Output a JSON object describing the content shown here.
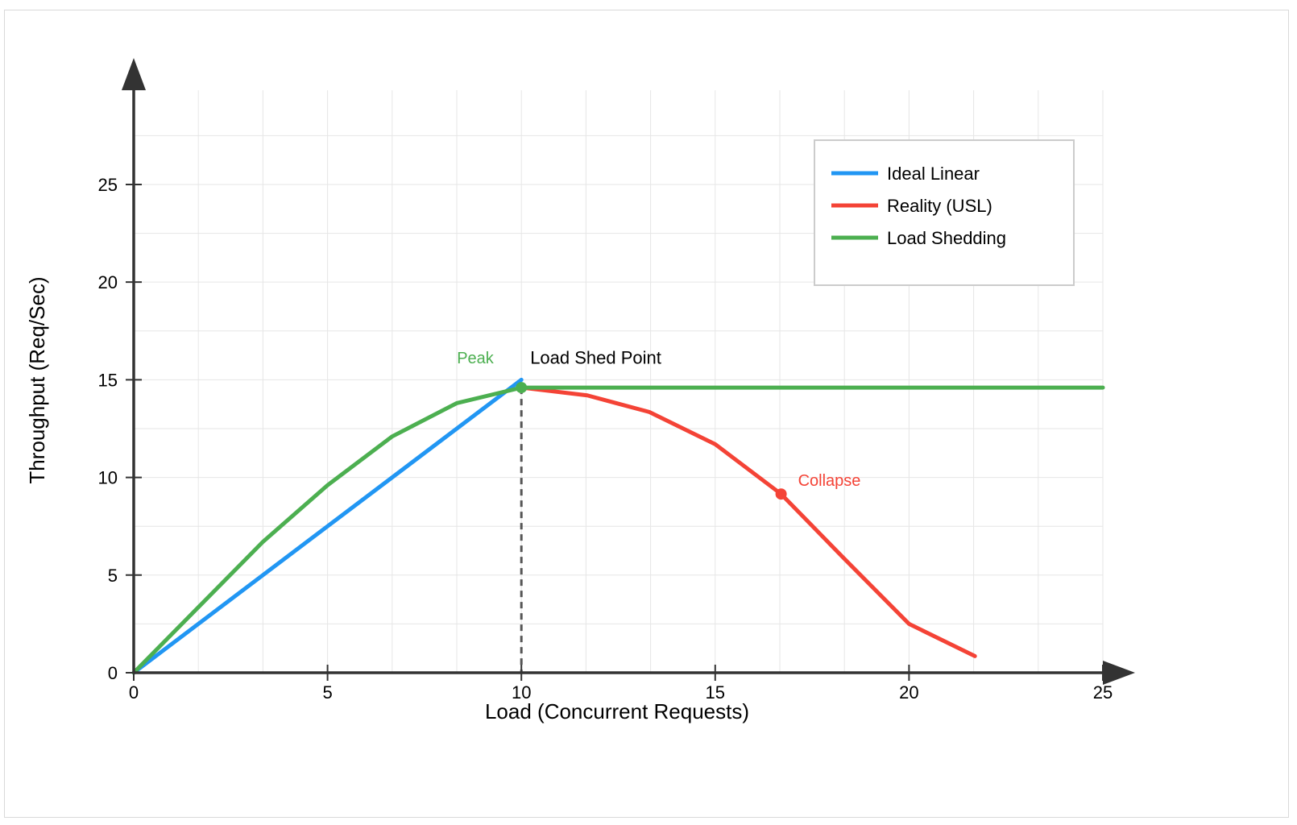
{
  "chart_data": {
    "type": "line",
    "xlabel": "Load (Concurrent Requests)",
    "ylabel": "Throughput (Req/Sec)",
    "xlim": [
      0,
      25
    ],
    "ylim": [
      0,
      29
    ],
    "x_ticks": [
      "0",
      "5",
      "10",
      "15",
      "20",
      "25"
    ],
    "y_ticks": [
      "0",
      "5",
      "10",
      "15",
      "20",
      "25"
    ],
    "grid": true,
    "legend_position": "top-right",
    "series": [
      {
        "name": "Ideal Linear",
        "color": "#2196F3",
        "points": [
          [
            0,
            0
          ],
          [
            10,
            15
          ]
        ]
      },
      {
        "name": "Reality (USL)",
        "color": "#F44336",
        "points": [
          [
            10,
            14.6
          ],
          [
            11.7,
            14.2
          ],
          [
            13.3,
            13.35
          ],
          [
            15.0,
            11.7
          ],
          [
            16.7,
            9.15
          ],
          [
            18.3,
            5.9
          ],
          [
            20.0,
            2.5
          ],
          [
            21.7,
            0.85
          ]
        ]
      },
      {
        "name": "Load Shedding",
        "color": "#4CAF50",
        "points": [
          [
            0,
            0
          ],
          [
            3.33,
            6.7
          ],
          [
            5.0,
            9.6
          ],
          [
            6.67,
            12.1
          ],
          [
            8.33,
            13.8
          ],
          [
            10.0,
            14.6
          ],
          [
            25.0,
            14.6
          ]
        ]
      }
    ],
    "annotations": [
      {
        "text": "Peak",
        "color": "#4CAF50",
        "x": 10,
        "y": 14.6
      },
      {
        "text": "Load Shed Point",
        "color": "#000000",
        "x": 10,
        "y": 15
      },
      {
        "text": "Collapse",
        "color": "#F44336",
        "x": 16.7,
        "y": 9.15
      }
    ],
    "vertical_marker_x": 10
  }
}
